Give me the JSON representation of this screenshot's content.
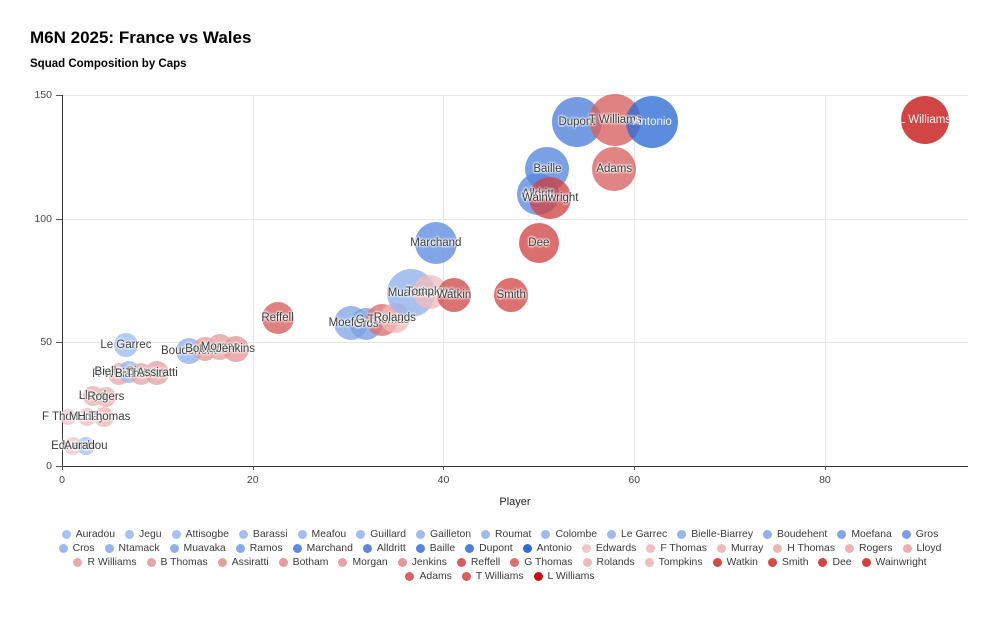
{
  "title": "M6N 2025: France vs Wales",
  "subtitle": "Squad Composition by Caps",
  "chart_data": {
    "type": "scatter",
    "subtype": "bubble",
    "xlabel": "Player",
    "ylabel": "",
    "xlim": [
      0,
      95
    ],
    "ylim": [
      0,
      150
    ],
    "x_ticks": [
      0,
      20,
      40,
      60,
      80
    ],
    "y_ticks": [
      0,
      50,
      100,
      150
    ],
    "grid": true,
    "bubble_opacity": 0.78,
    "points": [
      {
        "label": "F Thomas",
        "x": 0.6,
        "y": 20,
        "r": 8,
        "color": "#f0c0c0",
        "text": "dark"
      },
      {
        "label": "Edwards",
        "x": 1.2,
        "y": 8,
        "r": 9,
        "color": "#f2c6c6",
        "text": "dark"
      },
      {
        "label": "Auradou",
        "x": 2.5,
        "y": 8,
        "r": 9,
        "color": "#a7c3f3",
        "text": "dark"
      },
      {
        "label": "Murray",
        "x": 2.6,
        "y": 20,
        "r": 9,
        "color": "#efbcbc",
        "text": "dark"
      },
      {
        "label": "Lloyd",
        "x": 3.2,
        "y": 28.5,
        "r": 10,
        "color": "#eaaeae",
        "text": "dark"
      },
      {
        "label": "H Thomas",
        "x": 4.4,
        "y": 20,
        "r": 10,
        "color": "#edb6b6",
        "text": "dark"
      },
      {
        "label": "Rogers",
        "x": 4.6,
        "y": 28,
        "r": 10,
        "color": "#ecb2b2",
        "text": "dark"
      },
      {
        "label": "R Williams",
        "x": 6.0,
        "y": 37,
        "r": 11,
        "color": "#eaa9a9",
        "text": "dark"
      },
      {
        "label": "Le Garrec",
        "x": 6.7,
        "y": 49,
        "r": 12,
        "color": "#9ebcf0",
        "text": "dark"
      },
      {
        "label": "Bielle-Biarrey",
        "x": 7.0,
        "y": 38,
        "r": 11,
        "color": "#98b7ee",
        "text": "dark"
      },
      {
        "label": "B Thomas",
        "x": 8.3,
        "y": 37,
        "r": 11,
        "color": "#e8a4a4",
        "text": "dark"
      },
      {
        "label": "Assiratti",
        "x": 10.0,
        "y": 37.5,
        "r": 12,
        "color": "#e7a0a0",
        "text": "dark"
      },
      {
        "label": "Boudehent",
        "x": 13.3,
        "y": 46.5,
        "r": 13,
        "color": "#90b0ea",
        "text": "dark"
      },
      {
        "label": "Botham",
        "x": 15.0,
        "y": 47.5,
        "r": 12,
        "color": "#e59b9b",
        "text": "dark"
      },
      {
        "label": "Morgan",
        "x": 16.6,
        "y": 48,
        "r": 13,
        "color": "#e8a2a2",
        "text": "dark"
      },
      {
        "label": "Jenkins",
        "x": 18.2,
        "y": 47.5,
        "r": 13,
        "color": "#e49797",
        "text": "dark"
      },
      {
        "label": "Reffell",
        "x": 22.6,
        "y": 60,
        "r": 16,
        "color": "#d65e5e",
        "text": "dark"
      },
      {
        "label": "Moefana",
        "x": 30.3,
        "y": 58,
        "r": 17,
        "color": "#83a6e6",
        "text": "dark"
      },
      {
        "label": "Gros",
        "x": 31.9,
        "y": 57.5,
        "r": 16,
        "color": "#7aa0e3",
        "text": "dark"
      },
      {
        "label": "G Thomas",
        "x": 33.6,
        "y": 59,
        "r": 16,
        "color": "#db7070",
        "text": "dark"
      },
      {
        "label": "Rolands",
        "x": 34.9,
        "y": 60,
        "r": 15,
        "color": "#f0b9b9",
        "text": "dark"
      },
      {
        "label": "Muavaka",
        "x": 36.6,
        "y": 70,
        "r": 24,
        "color": "#8fb0eb",
        "text": "dark"
      },
      {
        "label": "Tompkins",
        "x": 38.6,
        "y": 70.5,
        "r": 17,
        "color": "#f1bcbc",
        "text": "dark"
      },
      {
        "label": "Marchand",
        "x": 39.2,
        "y": 90,
        "r": 21,
        "color": "#5f8ce0",
        "text": "dark"
      },
      {
        "label": "Watkin",
        "x": 41.1,
        "y": 69,
        "r": 17,
        "color": "#d24c4c",
        "text": "dark"
      },
      {
        "label": "Smith",
        "x": 47.1,
        "y": 69,
        "r": 17,
        "color": "#d24a4a",
        "text": "dark"
      },
      {
        "label": "Alldritt",
        "x": 49.9,
        "y": 110,
        "r": 21,
        "color": "#5c89df",
        "text": "dark"
      },
      {
        "label": "Dee",
        "x": 50.0,
        "y": 90,
        "r": 20,
        "color": "#d14646",
        "text": "dark"
      },
      {
        "label": "Baille",
        "x": 50.9,
        "y": 120,
        "r": 22,
        "color": "#5586dd",
        "text": "dark"
      },
      {
        "label": "Wainwright",
        "x": 51.2,
        "y": 108.5,
        "r": 21,
        "color": "#d04242",
        "text": "dark"
      },
      {
        "label": "Dupont",
        "x": 54.0,
        "y": 139,
        "r": 25,
        "color": "#4e80db",
        "text": "dark"
      },
      {
        "label": "Adams",
        "x": 57.9,
        "y": 120,
        "r": 22,
        "color": "#d86262",
        "text": "dark"
      },
      {
        "label": "T Williams",
        "x": 58.0,
        "y": 140,
        "r": 26,
        "color": "#d75f5f",
        "text": "dark"
      },
      {
        "label": "Antonio",
        "x": 61.9,
        "y": 139,
        "r": 26,
        "color": "#2e6bd4",
        "text": "light"
      },
      {
        "label": "L Williams",
        "x": 90.5,
        "y": 140,
        "r": 24,
        "color": "#c41111",
        "text": "light"
      }
    ]
  },
  "legend": {
    "rows": [
      [
        {
          "label": "Auradou",
          "color": "#a7c3f3"
        },
        {
          "label": "Jegu",
          "color": "#a6c2f2"
        },
        {
          "label": "Attisogbe",
          "color": "#a4c1f2"
        },
        {
          "label": "Barassi",
          "color": "#a3c0f1"
        },
        {
          "label": "Meafou",
          "color": "#a2bff1"
        },
        {
          "label": "Guillard",
          "color": "#a1bef0"
        },
        {
          "label": "Gailleton",
          "color": "#a0bdf0"
        },
        {
          "label": "Roumat",
          "color": "#9fbcef"
        },
        {
          "label": "Colombe",
          "color": "#9dbbef"
        },
        {
          "label": "Le Garrec",
          "color": "#9ebcf0"
        },
        {
          "label": "Bielle-Biarrey",
          "color": "#98b7ee"
        },
        {
          "label": "Boudehent",
          "color": "#90b0ea"
        },
        {
          "label": "Moefana",
          "color": "#83a6e6"
        },
        {
          "label": "Gros",
          "color": "#7aa0e3"
        }
      ],
      [
        {
          "label": "Cros",
          "color": "#9cb9ef"
        },
        {
          "label": "Ntamack",
          "color": "#95b4ed"
        },
        {
          "label": "Muavaka",
          "color": "#8fb0eb"
        },
        {
          "label": "Ramos",
          "color": "#89abe9"
        },
        {
          "label": "Marchand",
          "color": "#5f8ce0"
        },
        {
          "label": "Alldritt",
          "color": "#5c89df"
        },
        {
          "label": "Baille",
          "color": "#5586dd"
        },
        {
          "label": "Dupont",
          "color": "#4e80db"
        },
        {
          "label": "Antonio",
          "color": "#2e6bd4"
        },
        {
          "label": "Edwards",
          "color": "#f2c6c6"
        },
        {
          "label": "F Thomas",
          "color": "#f0c0c0"
        },
        {
          "label": "Murray",
          "color": "#efbcbc"
        },
        {
          "label": "H Thomas",
          "color": "#edb6b6"
        },
        {
          "label": "Rogers",
          "color": "#ecb2b2"
        },
        {
          "label": "Lloyd",
          "color": "#eaaeae"
        }
      ],
      [
        {
          "label": "R Williams",
          "color": "#eaa9a9"
        },
        {
          "label": "B Thomas",
          "color": "#e8a4a4"
        },
        {
          "label": "Assiratti",
          "color": "#e7a0a0"
        },
        {
          "label": "Botham",
          "color": "#e59b9b"
        },
        {
          "label": "Morgan",
          "color": "#e8a2a2"
        },
        {
          "label": "Jenkins",
          "color": "#e49797"
        },
        {
          "label": "Reffell",
          "color": "#d65e5e"
        },
        {
          "label": "G Thomas",
          "color": "#db7070"
        },
        {
          "label": "Rolands",
          "color": "#f0b9b9"
        },
        {
          "label": "Tompkins",
          "color": "#f1bcbc"
        },
        {
          "label": "Watkin",
          "color": "#d24c4c"
        },
        {
          "label": "Smith",
          "color": "#d24a4a"
        },
        {
          "label": "Dee",
          "color": "#d14646"
        },
        {
          "label": "Wainwright",
          "color": "#d04242"
        }
      ],
      [
        {
          "label": "Adams",
          "color": "#d86262"
        },
        {
          "label": "T Williams",
          "color": "#d75f5f"
        },
        {
          "label": "L Williams",
          "color": "#c41111"
        }
      ]
    ]
  }
}
